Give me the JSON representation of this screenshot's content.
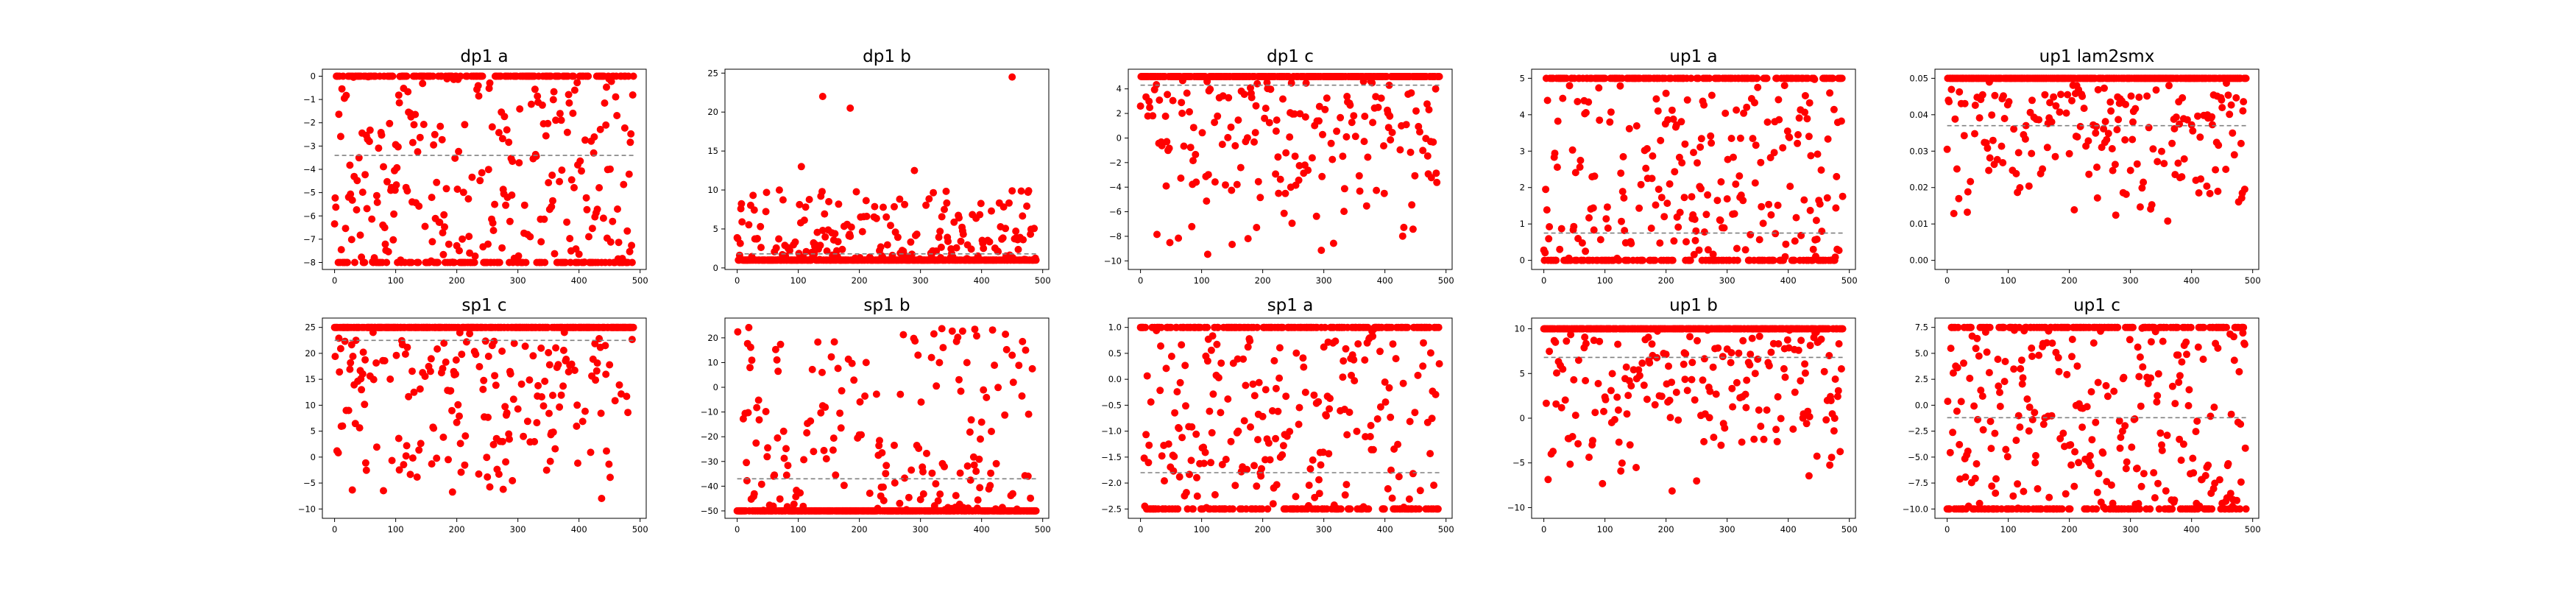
{
  "figure": {
    "background": "#ffffff"
  },
  "style": {
    "point_color": "#ff0000",
    "mean_line_color": "#808080"
  },
  "chart_data": [
    {
      "type": "scatter",
      "title": "dp1 a",
      "xlim": [
        -20,
        510
      ],
      "ylim": [
        -8.3,
        0.3
      ],
      "xticks": [
        0,
        100,
        200,
        300,
        400,
        500
      ],
      "yticks": [
        0,
        -1,
        -2,
        -3,
        -4,
        -5,
        -6,
        -7,
        -8
      ],
      "mean_line": -3.4,
      "n": 490,
      "value_range": [
        -8,
        0
      ],
      "upper_cluster": 0,
      "lower_cluster": -8,
      "annotations": []
    },
    {
      "type": "scatter",
      "title": "dp1 b",
      "xlim": [
        -20,
        510
      ],
      "ylim": [
        -0.2,
        25.5
      ],
      "xticks": [
        0,
        100,
        200,
        300,
        400,
        500
      ],
      "yticks": [
        0,
        5,
        10,
        15,
        20,
        25
      ],
      "mean_line": 1.8,
      "n": 490,
      "value_range": [
        1,
        10
      ],
      "lower_cluster": 1,
      "outliers": [
        [
          140,
          22
        ],
        [
          185,
          20.5
        ],
        [
          290,
          12.5
        ],
        [
          450,
          24.5
        ],
        [
          105,
          13
        ]
      ],
      "annotations": []
    },
    {
      "type": "scatter",
      "title": "dp1 c",
      "xlim": [
        -20,
        510
      ],
      "ylim": [
        -10.7,
        5.6
      ],
      "xticks": [
        0,
        100,
        200,
        300,
        400,
        500
      ],
      "yticks": [
        4,
        2,
        0,
        -2,
        -4,
        -6,
        -8,
        -10
      ],
      "mean_line": 4.3,
      "n": 490,
      "value_range": [
        -10,
        5
      ],
      "upper_cluster": 5,
      "annotations": []
    },
    {
      "type": "scatter",
      "title": "up1 a",
      "xlim": [
        -20,
        510
      ],
      "ylim": [
        -0.25,
        5.25
      ],
      "xticks": [
        0,
        100,
        200,
        300,
        400,
        500
      ],
      "yticks": [
        0,
        1,
        2,
        3,
        4,
        5
      ],
      "mean_line": 0.75,
      "n": 490,
      "value_range": [
        0,
        5
      ],
      "upper_cluster": 5,
      "lower_cluster": 0,
      "annotations": []
    },
    {
      "type": "scatter",
      "title": "up1 lam2smx",
      "xlim": [
        -20,
        510
      ],
      "ylim": [
        -0.0025,
        0.0525
      ],
      "xticks": [
        0,
        100,
        200,
        300,
        400,
        500
      ],
      "yticks": [
        0,
        0.01,
        0.02,
        0.03,
        0.04,
        0.05
      ],
      "ytick_labels": [
        "0.00",
        "0.01",
        "0.02",
        "0.03",
        "0.04",
        "0.05"
      ],
      "mean_line": 0.037,
      "n": 490,
      "value_range": [
        0.01,
        0.05
      ],
      "upper_cluster": 0.05,
      "annotations": []
    },
    {
      "type": "scatter",
      "title": "sp1 c",
      "xlim": [
        -20,
        510
      ],
      "ylim": [
        -11.8,
        26.8
      ],
      "xticks": [
        0,
        100,
        200,
        300,
        400,
        500
      ],
      "yticks": [
        25,
        20,
        15,
        10,
        5,
        0,
        -5,
        -10
      ],
      "mean_line": 22.5,
      "n": 490,
      "value_range": [
        -10,
        25
      ],
      "upper_cluster": 25,
      "annotations": []
    },
    {
      "type": "scatter",
      "title": "sp1 b",
      "xlim": [
        -20,
        510
      ],
      "ylim": [
        -53,
        28
      ],
      "xticks": [
        0,
        100,
        200,
        300,
        400,
        500
      ],
      "yticks": [
        20,
        10,
        0,
        -10,
        -20,
        -30,
        -40,
        -50
      ],
      "mean_line": -37,
      "n": 490,
      "value_range": [
        -50,
        25
      ],
      "lower_cluster": -50,
      "annotations": []
    },
    {
      "type": "scatter",
      "title": "sp1 a",
      "xlim": [
        -20,
        510
      ],
      "ylim": [
        -2.68,
        1.18
      ],
      "xticks": [
        0,
        100,
        200,
        300,
        400,
        500
      ],
      "yticks": [
        1,
        0.5,
        0,
        -0.5,
        -1,
        -1.5,
        -2,
        -2.5
      ],
      "ytick_labels": [
        "1.0",
        "0.5",
        "0.0",
        "-0.5",
        "-1.0",
        "-1.5",
        "-2.0",
        "-2.5"
      ],
      "mean_line": -1.8,
      "n": 490,
      "value_range": [
        -2.5,
        1
      ],
      "upper_cluster": 1,
      "lower_cluster": -2.5,
      "annotations": []
    },
    {
      "type": "scatter",
      "title": "up1 b",
      "xlim": [
        -20,
        510
      ],
      "ylim": [
        -11.2,
        11.2
      ],
      "xticks": [
        0,
        100,
        200,
        300,
        400,
        500
      ],
      "yticks": [
        10,
        5,
        0,
        -5,
        -10
      ],
      "mean_line": 6.8,
      "n": 490,
      "value_range": [
        -10,
        10
      ],
      "upper_cluster": 10,
      "annotations": []
    },
    {
      "type": "scatter",
      "title": "up1 c",
      "xlim": [
        -20,
        510
      ],
      "ylim": [
        -10.9,
        8.4
      ],
      "xticks": [
        0,
        100,
        200,
        300,
        400,
        500
      ],
      "yticks": [
        7.5,
        5,
        2.5,
        0,
        -2.5,
        -5,
        -7.5,
        -10
      ],
      "ytick_labels": [
        "7.5",
        "5.0",
        "2.5",
        "0.0",
        "-2.5",
        "-5.0",
        "-7.5",
        "-10.0"
      ],
      "mean_line": -1.2,
      "n": 490,
      "value_range": [
        -10,
        7.5
      ],
      "upper_cluster": 7.5,
      "lower_cluster": -10,
      "annotations": []
    }
  ]
}
